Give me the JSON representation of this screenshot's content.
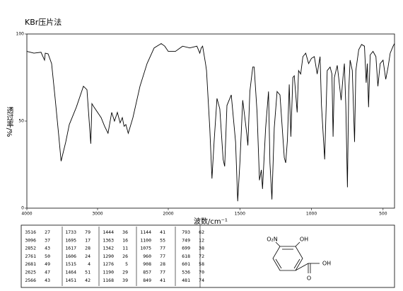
{
  "chart_data": {
    "type": "line",
    "title": "KBr压片法",
    "x_label": "波数/cm⁻¹",
    "y_label": "透过率/%",
    "xlim": [
      4000,
      420
    ],
    "xbreak": 2000,
    "xticks": [
      4000,
      3000,
      2000,
      1500,
      1000,
      500
    ],
    "ylim": [
      0,
      100
    ],
    "yticks": [
      0,
      50,
      100
    ],
    "color": "#000000",
    "x": [
      4000,
      3900,
      3800,
      3750,
      3740,
      3700,
      3650,
      3600,
      3550,
      3516,
      3450,
      3400,
      3300,
      3200,
      3150,
      3096,
      3080,
      3050,
      2950,
      2900,
      2852,
      2800,
      2761,
      2720,
      2681,
      2650,
      2625,
      2600,
      2566,
      2500,
      2400,
      2300,
      2200,
      2100,
      2050,
      2000,
      1950,
      1900,
      1850,
      1800,
      1780,
      1770,
      1760,
      1740,
      1733,
      1710,
      1695,
      1680,
      1660,
      1640,
      1617,
      1606,
      1590,
      1560,
      1530,
      1515,
      1500,
      1480,
      1464,
      1451,
      1444,
      1430,
      1410,
      1400,
      1380,
      1363,
      1350,
      1342,
      1320,
      1300,
      1290,
      1276,
      1260,
      1240,
      1220,
      1190,
      1180,
      1168,
      1155,
      1144,
      1130,
      1120,
      1100,
      1090,
      1075,
      1060,
      1040,
      1020,
      1000,
      980,
      960,
      940,
      930,
      908,
      890,
      870,
      857,
      849,
      840,
      820,
      810,
      793,
      780,
      770,
      760,
      749,
      740,
      730,
      715,
      699,
      690,
      670,
      650,
      630,
      618,
      610,
      601,
      590,
      570,
      550,
      536,
      520,
      500,
      481,
      465,
      450,
      430,
      420
    ],
    "values": [
      90,
      89,
      89.5,
      85,
      89,
      88.6,
      83,
      63,
      42,
      27,
      38,
      48,
      58,
      70,
      68,
      37,
      60,
      58,
      52,
      47,
      43,
      55,
      50,
      55,
      49,
      52,
      47,
      48,
      43,
      52,
      70,
      83,
      92,
      94.5,
      93,
      90,
      90,
      93,
      92,
      93,
      89,
      92,
      93,
      83,
      79,
      46,
      17,
      38,
      63,
      57,
      28,
      24,
      59,
      65,
      38,
      4,
      26,
      62,
      51,
      42,
      36,
      67,
      81,
      81,
      55,
      16,
      22,
      11,
      46,
      67,
      26,
      5,
      46,
      67,
      65,
      29,
      26,
      39,
      71,
      41,
      75,
      76,
      55,
      79,
      77,
      87,
      89,
      83,
      86,
      87,
      77,
      87,
      59,
      28,
      79,
      81,
      77,
      41,
      75,
      82,
      75,
      62,
      75,
      83,
      59,
      12,
      67,
      85,
      79,
      38,
      79,
      91,
      94,
      93,
      72,
      83,
      58,
      88,
      90,
      87,
      70,
      83,
      85,
      74,
      81,
      89,
      93,
      94.5
    ]
  },
  "peak_table": [
    [
      [
        "3516",
        "27"
      ],
      [
        "3096",
        "37"
      ],
      [
        "2852",
        "43"
      ],
      [
        "2761",
        "50"
      ],
      [
        "2681",
        "49"
      ],
      [
        "2625",
        "47"
      ],
      [
        "2566",
        "43"
      ]
    ],
    [
      [
        "1733",
        "79"
      ],
      [
        "1695",
        "17"
      ],
      [
        "1617",
        "28"
      ],
      [
        "1606",
        "24"
      ],
      [
        "1515",
        "4"
      ],
      [
        "1464",
        "51"
      ],
      [
        "1451",
        "42"
      ]
    ],
    [
      [
        "1444",
        "36"
      ],
      [
        "1363",
        "16"
      ],
      [
        "1342",
        "11"
      ],
      [
        "1290",
        "26"
      ],
      [
        "1276",
        "5"
      ],
      [
        "1190",
        "29"
      ],
      [
        "1168",
        "39"
      ]
    ],
    [
      [
        "1144",
        "41"
      ],
      [
        "1100",
        "55"
      ],
      [
        "1075",
        "77"
      ],
      [
        "960",
        "77"
      ],
      [
        "908",
        "28"
      ],
      [
        "857",
        "77"
      ],
      [
        "849",
        "41"
      ]
    ],
    [
      [
        "793",
        "62"
      ],
      [
        "749",
        "12"
      ],
      [
        "699",
        "38"
      ],
      [
        "618",
        "72"
      ],
      [
        "601",
        "58"
      ],
      [
        "536",
        "70"
      ],
      [
        "481",
        "74"
      ]
    ]
  ],
  "structure": {
    "nitro": "O₂N",
    "hydroxyl": "OH",
    "acid_oh": "OH",
    "carbonyl": "O"
  }
}
